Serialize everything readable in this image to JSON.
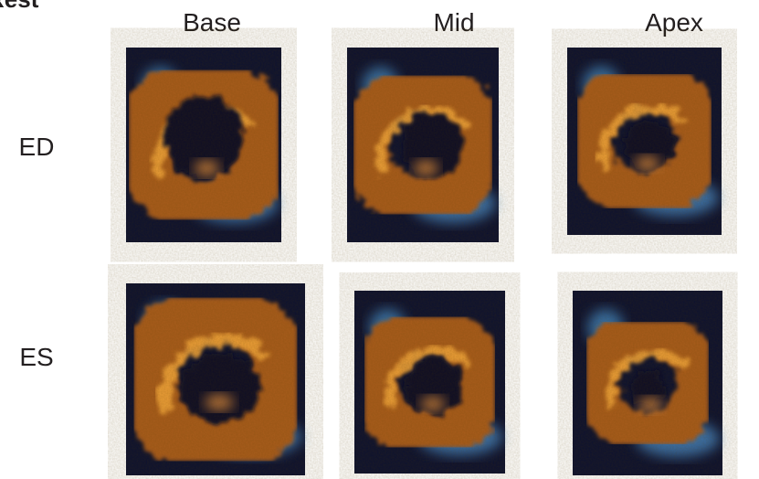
{
  "header": {
    "title": "Rest"
  },
  "columns": [
    "Base",
    "Mid",
    "Apex"
  ],
  "rows": [
    "ED",
    "ES"
  ]
}
